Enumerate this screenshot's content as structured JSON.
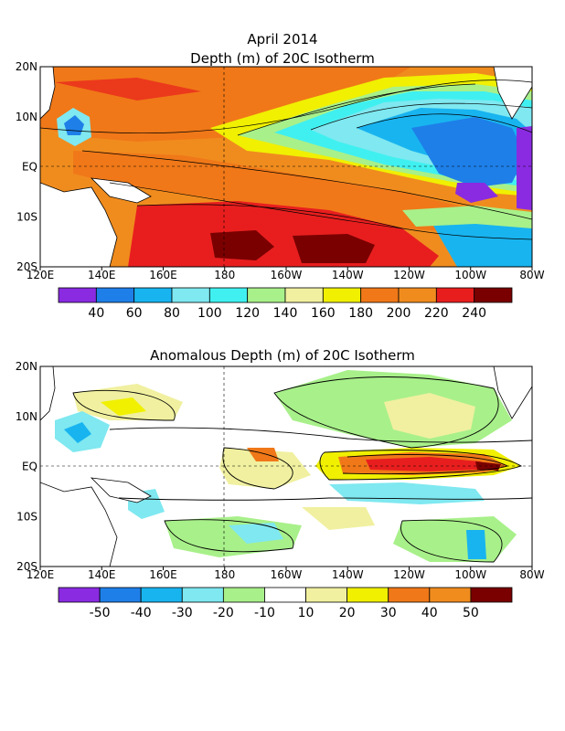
{
  "figure": {
    "date": "April 2014",
    "top_title": "Depth (m) of 20C Isotherm",
    "bottom_title": "Anomalous Depth (m) of 20C Isotherm"
  },
  "axes": {
    "lon_labels": [
      "120E",
      "140E",
      "160E",
      "180",
      "160W",
      "140W",
      "120W",
      "100W",
      "80W"
    ],
    "lat_labels": [
      "20N",
      "10N",
      "EQ",
      "10S",
      "20S"
    ]
  },
  "top_colorbar": {
    "labels": [
      "40",
      "60",
      "80",
      "100",
      "120",
      "140",
      "160",
      "180",
      "200",
      "220",
      "240"
    ],
    "colors": [
      "#8a2be2",
      "#1e7fe8",
      "#18b4f0",
      "#7fe8f0",
      "#40f0f0",
      "#a8f08a",
      "#f0f0a0",
      "#f0f000",
      "#f07818",
      "#f08c1e",
      "#e81e1e",
      "#7a0000"
    ]
  },
  "bottom_colorbar": {
    "labels": [
      "-50",
      "-40",
      "-30",
      "-20",
      "-10",
      "10",
      "20",
      "30",
      "40",
      "50"
    ],
    "colors": [
      "#8a2be2",
      "#1e7fe8",
      "#18b4f0",
      "#7fe8f0",
      "#a8f08a",
      "#ffffff",
      "#f0f0a0",
      "#f0f000",
      "#f07818",
      "#f08c1e",
      "#7a0000"
    ]
  },
  "palette": {
    "land": "#ffffff",
    "grid": "#000000"
  }
}
